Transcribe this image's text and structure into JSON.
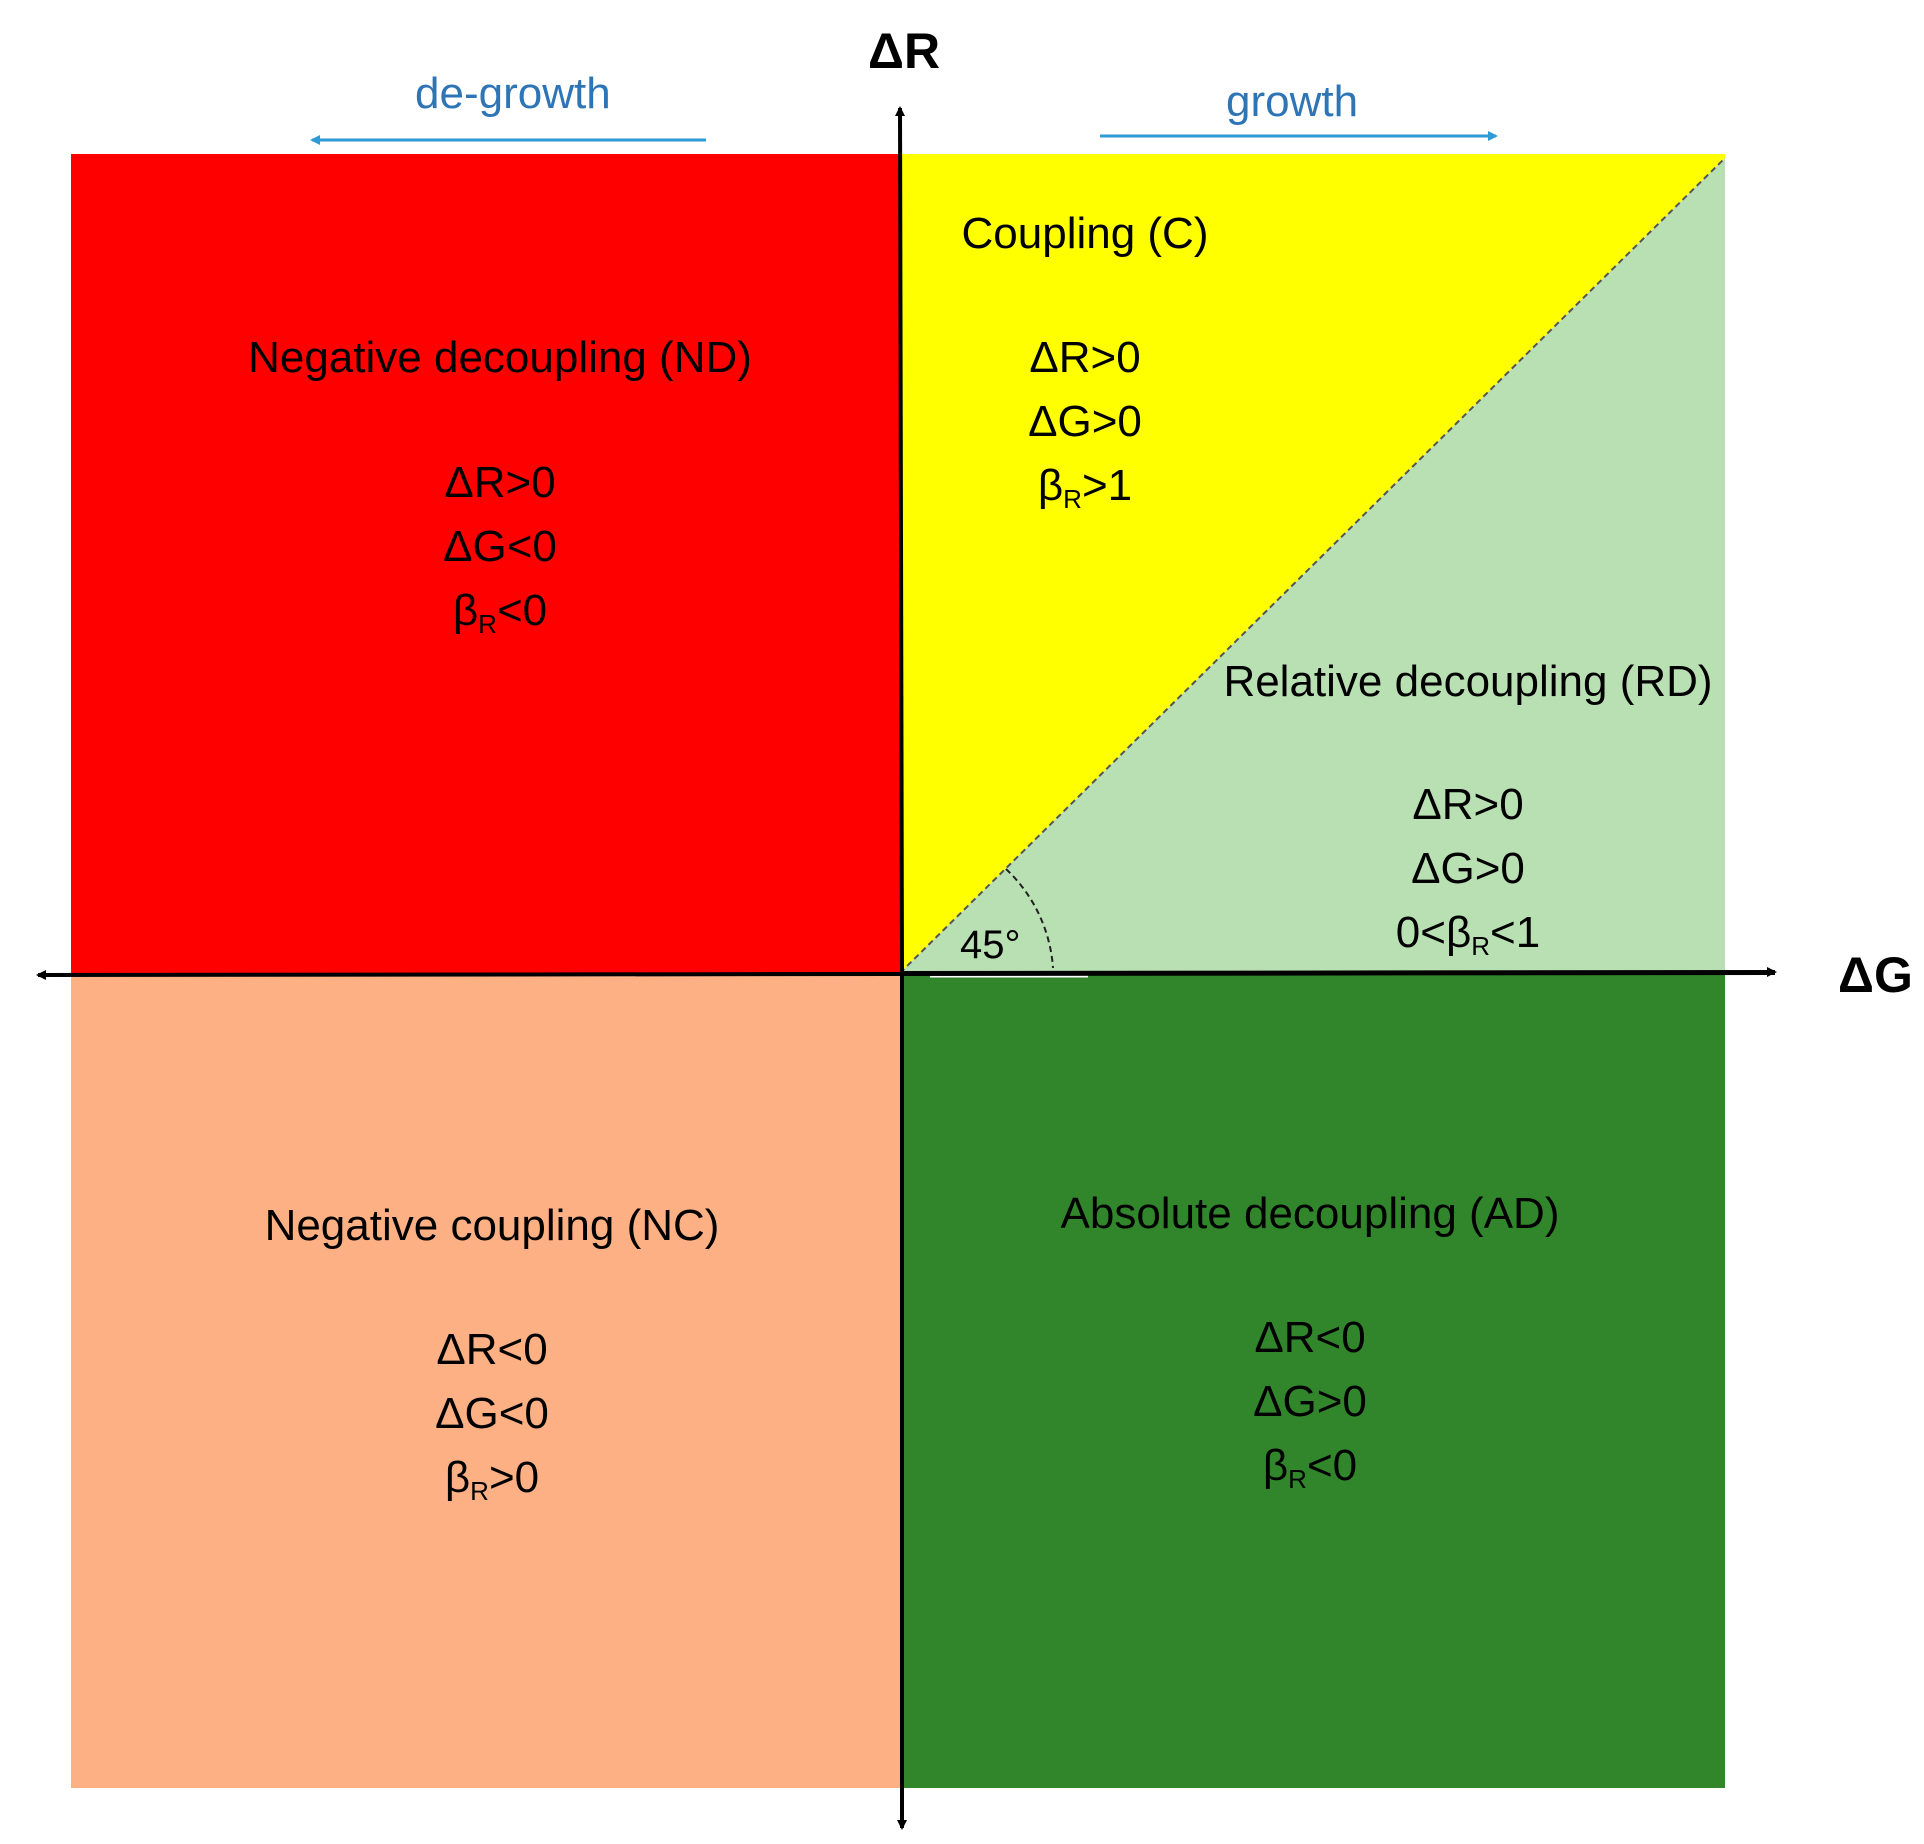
{
  "axes": {
    "x_label": "ΔG",
    "y_label": "ΔR"
  },
  "directions": {
    "degrowth": "de-growth",
    "growth": "growth"
  },
  "angle_label": "45°",
  "zones": {
    "nd": {
      "title": "Negative decoupling (ND)",
      "c1": "ΔR>0",
      "c2": "ΔG<0",
      "c3_pre": "β",
      "c3_sub": "R",
      "c3_post": "<0",
      "color": "#ff0000"
    },
    "c": {
      "title": "Coupling (C)",
      "c1": "ΔR>0",
      "c2": "ΔG>0",
      "c3_pre": "β",
      "c3_sub": "R",
      "c3_post": ">1",
      "color": "#ffff00"
    },
    "rd": {
      "title": "Relative decoupling (RD)",
      "c1": "ΔR>0",
      "c2": "ΔG>0",
      "c3_pre": "0<β",
      "c3_sub": "R",
      "c3_post": "<1",
      "color": "#b9e0b3"
    },
    "nc": {
      "title": "Negative coupling (NC)",
      "c1": "ΔR<0",
      "c2": "ΔG<0",
      "c3_pre": "β",
      "c3_sub": "R",
      "c3_post": ">0",
      "color": "#fcb083"
    },
    "ad": {
      "title": "Absolute decoupling (AD)",
      "c1": "ΔR<0",
      "c2": "ΔG>0",
      "c3_pre": "β",
      "c3_sub": "R",
      "c3_post": "<0",
      "color": "#31862c"
    }
  },
  "colors": {
    "axis": "#000000",
    "direction_arrow": "#2e9ad6",
    "direction_text": "#2e75b6"
  }
}
